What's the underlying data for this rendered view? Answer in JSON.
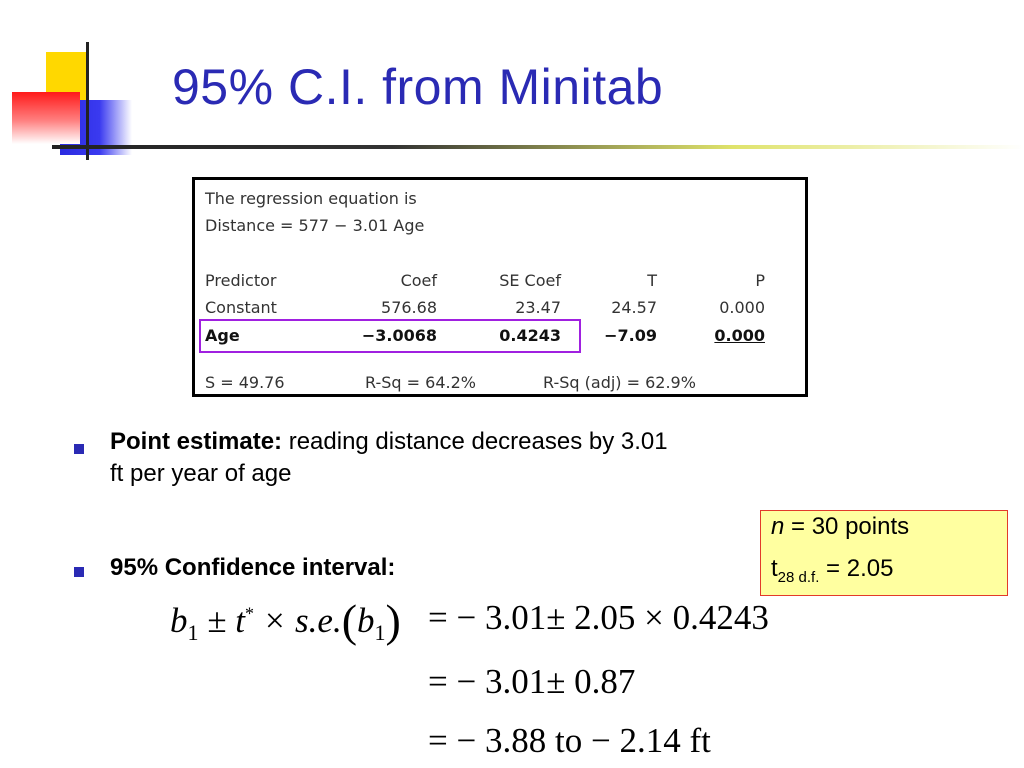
{
  "slide": {
    "title": "95% C.I. from Minitab"
  },
  "minitab": {
    "equation_header": "The regression equation is",
    "equation": "Distance = 577 − 3.01 Age",
    "headers": [
      "Predictor",
      "Coef",
      "SE Coef",
      "T",
      "P"
    ],
    "rows": [
      [
        "Constant",
        "576.68",
        "23.47",
        "24.57",
        "0.000"
      ],
      [
        "Age",
        "−3.0068",
        "0.4243",
        "−7.09",
        "0.000"
      ]
    ],
    "stats": {
      "s": "S = 49.76",
      "rsq": "R-Sq = 64.2%",
      "rsq_adj": "R-Sq (adj) = 62.9%"
    }
  },
  "bullets": {
    "point_label": "Point estimate:",
    "point_text": " reading distance decreases by 3.01",
    "point_text2": "ft per year of age",
    "ci_label": "95% Confidence interval:"
  },
  "infobox": {
    "n_var": "n",
    "n_text": " = 30 points",
    "t_var": "t",
    "t_sub": "28 d.f.",
    "t_text": " = 2.05"
  },
  "formula": {
    "b": "b",
    "sub1": "1",
    "pm_t": " ± t",
    "star": "*",
    "times_se": " × s.e.",
    "open_paren": "(",
    "close_paren": ")",
    "line1_rhs": "=  − 3.01± 2.05 × 0.4243",
    "line2_rhs": "=  − 3.01± 0.87",
    "line3_rhs": "=  − 3.88 to  − 2.14  ft"
  },
  "colors": {
    "title": "#2a2ab4",
    "highlight": "#a020e0",
    "infobox_bg": "#ffffa0",
    "infobox_border": "#e23a2a"
  }
}
